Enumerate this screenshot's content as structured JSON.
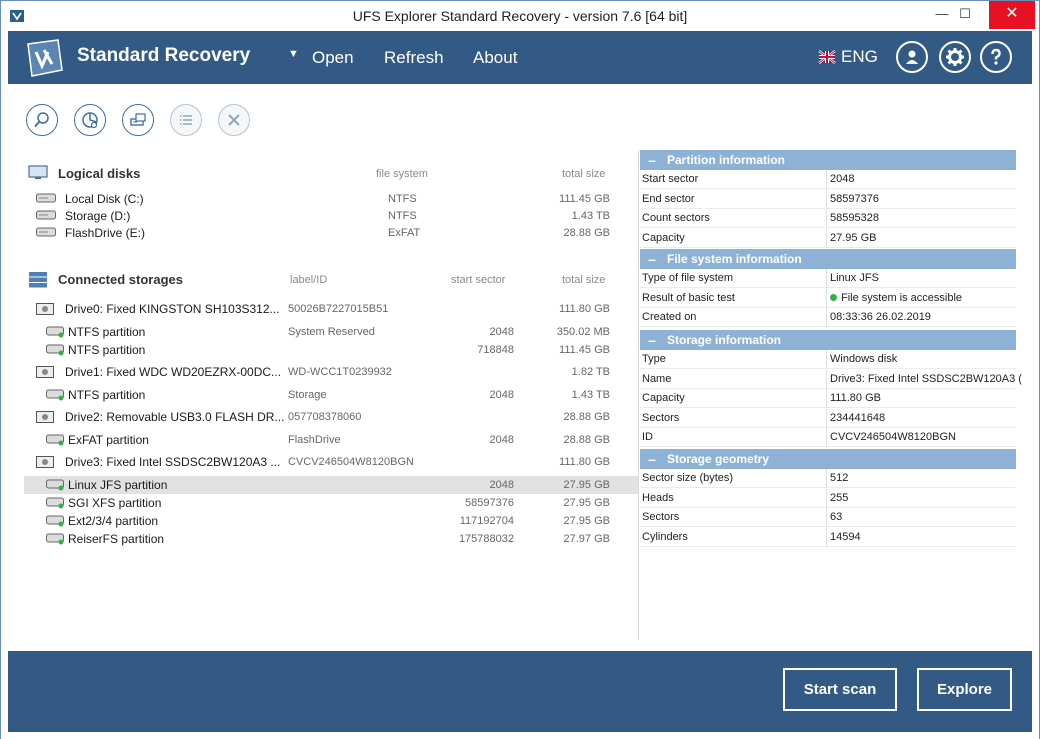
{
  "window": {
    "title": "UFS Explorer Standard Recovery - version 7.6 [64 bit]",
    "minimize": "—",
    "maximize": "☐",
    "close": "✕"
  },
  "header": {
    "brand": "Standard Recovery",
    "dropdown": "▼",
    "menu": {
      "open": "Open",
      "refresh": "Refresh",
      "about": "About"
    },
    "language": "ENG"
  },
  "toolbar": {
    "icons": [
      "search-icon",
      "pie-chart-icon",
      "drive-image-icon",
      "list-icon",
      "cancel-icon"
    ]
  },
  "logical_disks": {
    "title": "Logical disks",
    "col_fs": "file system",
    "col_size": "total size",
    "items": [
      {
        "name": "Local Disk (C:)",
        "fs": "NTFS",
        "size": "111.45 GB"
      },
      {
        "name": "Storage (D:)",
        "fs": "NTFS",
        "size": "1.43 TB"
      },
      {
        "name": "FlashDrive (E:)",
        "fs": "ExFAT",
        "size": "28.88 GB"
      }
    ]
  },
  "connected_storages": {
    "title": "Connected storages",
    "col_label": "label/ID",
    "col_sector": "start sector",
    "col_size": "total size",
    "items": [
      {
        "name": "Drive0: Fixed KINGSTON SH103S312...",
        "label": "50026B7227015B51",
        "sector": "",
        "size": "111.80 GB",
        "kind": "drive"
      },
      {
        "name": "NTFS partition",
        "label": "System Reserved",
        "sector": "2048",
        "size": "350.02 MB",
        "kind": "part"
      },
      {
        "name": "NTFS partition",
        "label": "",
        "sector": "718848",
        "size": "111.45 GB",
        "kind": "part"
      },
      {
        "name": "Drive1: Fixed WDC WD20EZRX-00DC...",
        "label": "WD-WCC1T0239932",
        "sector": "",
        "size": "1.82 TB",
        "kind": "drive"
      },
      {
        "name": "NTFS partition",
        "label": "Storage",
        "sector": "2048",
        "size": "1.43 TB",
        "kind": "part"
      },
      {
        "name": "Drive2: Removable USB3.0 FLASH DR...",
        "label": "057708378060",
        "sector": "",
        "size": "28.88 GB",
        "kind": "drive"
      },
      {
        "name": "ExFAT partition",
        "label": "FlashDrive",
        "sector": "2048",
        "size": "28.88 GB",
        "kind": "part"
      },
      {
        "name": "Drive3: Fixed Intel SSDSC2BW120A3 ...",
        "label": "CVCV246504W8120BGN",
        "sector": "",
        "size": "111.80 GB",
        "kind": "drive"
      },
      {
        "name": "Linux JFS partition",
        "label": "",
        "sector": "2048",
        "size": "27.95 GB",
        "kind": "part",
        "selected": true
      },
      {
        "name": "SGI XFS partition",
        "label": "",
        "sector": "58597376",
        "size": "27.95 GB",
        "kind": "part"
      },
      {
        "name": "Ext2/3/4 partition",
        "label": "",
        "sector": "117192704",
        "size": "27.95 GB",
        "kind": "part"
      },
      {
        "name": "ReiserFS partition",
        "label": "",
        "sector": "175788032",
        "size": "27.97 GB",
        "kind": "part"
      }
    ]
  },
  "properties": {
    "minus": "–",
    "partition": {
      "title": "Partition information",
      "rows": [
        {
          "k": "Start sector",
          "v": "2048"
        },
        {
          "k": "End sector",
          "v": "58597376"
        },
        {
          "k": "Count sectors",
          "v": "58595328"
        },
        {
          "k": "Capacity",
          "v": "27.95 GB"
        }
      ]
    },
    "filesystem": {
      "title": "File system information",
      "rows": [
        {
          "k": "Type of file system",
          "v": "Linux JFS"
        },
        {
          "k": "Result of basic test",
          "v": "File system is accessible",
          "status": "ok"
        },
        {
          "k": "Created on",
          "v": "08:33:36 26.02.2019"
        }
      ]
    },
    "storage": {
      "title": "Storage information",
      "rows": [
        {
          "k": "Type",
          "v": "Windows disk"
        },
        {
          "k": "Name",
          "v": "Drive3: Fixed Intel SSDSC2BW120A3 ("
        },
        {
          "k": "Capacity",
          "v": "111.80 GB"
        },
        {
          "k": "Sectors",
          "v": "234441648"
        },
        {
          "k": "ID",
          "v": "CVCV246504W8120BGN"
        }
      ]
    },
    "geometry": {
      "title": "Storage geometry",
      "rows": [
        {
          "k": "Sector size (bytes)",
          "v": "512"
        },
        {
          "k": "Heads",
          "v": "255"
        },
        {
          "k": "Sectors",
          "v": "63"
        },
        {
          "k": "Cylinders",
          "v": "14594"
        }
      ]
    }
  },
  "footer": {
    "start_scan": "Start scan",
    "explore": "Explore"
  },
  "colors": {
    "header_bg": "#325a84",
    "group_head_bg": "#8db2d5",
    "selected_row": "#e2e2e2",
    "status_ok": "#2fb344"
  }
}
